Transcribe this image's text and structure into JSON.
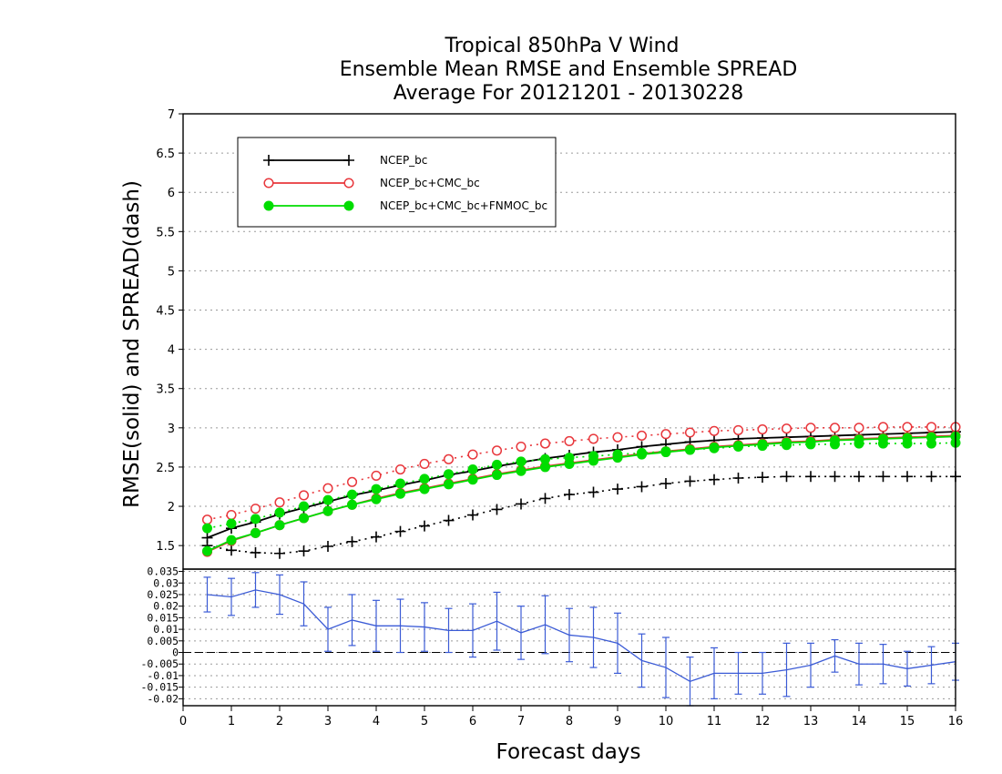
{
  "chart_data": [
    {
      "type": "line",
      "title": [
        "Tropical 850hPa V Wind",
        "Ensemble Mean RMSE and Ensemble SPREAD",
        "Average For 20121201 - 20130228"
      ],
      "ylabel": "RMSE(solid) and SPREAD(dash)",
      "xlim": [
        0,
        16
      ],
      "ylim": [
        1.2,
        7
      ],
      "yticks": [
        "1.5",
        "2",
        "2.5",
        "3",
        "3.5",
        "4",
        "4.5",
        "5",
        "5.5",
        "6",
        "6.5",
        "7"
      ],
      "grid": true,
      "legend_position": "top-left",
      "x": [
        0.5,
        1,
        1.5,
        2,
        2.5,
        3,
        3.5,
        4,
        4.5,
        5,
        5.5,
        6,
        6.5,
        7,
        7.5,
        8,
        8.5,
        9,
        9.5,
        10,
        10.5,
        11,
        11.5,
        12,
        12.5,
        13,
        13.5,
        14,
        14.5,
        15,
        15.5,
        16
      ],
      "series": [
        {
          "name": "NCEP_bc",
          "color": "#000000",
          "marker": "plus",
          "rmse": [
            1.6,
            1.72,
            1.8,
            1.9,
            1.98,
            2.06,
            2.14,
            2.2,
            2.27,
            2.33,
            2.4,
            2.45,
            2.51,
            2.56,
            2.61,
            2.65,
            2.69,
            2.72,
            2.76,
            2.79,
            2.82,
            2.84,
            2.86,
            2.87,
            2.88,
            2.89,
            2.9,
            2.91,
            2.92,
            2.93,
            2.94,
            2.95
          ],
          "spread": [
            1.5,
            1.44,
            1.41,
            1.4,
            1.43,
            1.49,
            1.55,
            1.61,
            1.68,
            1.75,
            1.82,
            1.89,
            1.96,
            2.03,
            2.1,
            2.15,
            2.18,
            2.22,
            2.25,
            2.29,
            2.32,
            2.34,
            2.36,
            2.37,
            2.38,
            2.38,
            2.38,
            2.38,
            2.38,
            2.38,
            2.38,
            2.38
          ]
        },
        {
          "name": "NCEP_bc+CMC_bc",
          "color": "#e8373c",
          "marker": "open-circle",
          "rmse": [
            1.42,
            1.56,
            1.66,
            1.76,
            1.85,
            1.94,
            2.02,
            2.1,
            2.17,
            2.23,
            2.29,
            2.35,
            2.41,
            2.46,
            2.51,
            2.55,
            2.59,
            2.63,
            2.67,
            2.7,
            2.73,
            2.76,
            2.78,
            2.8,
            2.82,
            2.83,
            2.85,
            2.86,
            2.87,
            2.88,
            2.89,
            2.9
          ],
          "spread": [
            1.83,
            1.89,
            1.97,
            2.05,
            2.14,
            2.23,
            2.31,
            2.39,
            2.47,
            2.54,
            2.6,
            2.66,
            2.71,
            2.76,
            2.8,
            2.83,
            2.86,
            2.88,
            2.9,
            2.92,
            2.94,
            2.96,
            2.97,
            2.98,
            2.99,
            3.0,
            3.0,
            3.0,
            3.01,
            3.01,
            3.01,
            3.01
          ]
        },
        {
          "name": "NCEP_bc+CMC_bc+FNMOC_bc",
          "color": "#00dd00",
          "marker": "filled-circle",
          "rmse": [
            1.43,
            1.57,
            1.66,
            1.76,
            1.85,
            1.94,
            2.02,
            2.09,
            2.16,
            2.22,
            2.28,
            2.34,
            2.4,
            2.45,
            2.5,
            2.54,
            2.58,
            2.62,
            2.66,
            2.69,
            2.72,
            2.75,
            2.77,
            2.79,
            2.81,
            2.82,
            2.84,
            2.85,
            2.86,
            2.87,
            2.88,
            2.89
          ],
          "spread": [
            1.72,
            1.78,
            1.84,
            1.92,
            2.0,
            2.08,
            2.15,
            2.22,
            2.29,
            2.35,
            2.41,
            2.47,
            2.53,
            2.57,
            2.6,
            2.62,
            2.64,
            2.66,
            2.68,
            2.7,
            2.72,
            2.74,
            2.76,
            2.77,
            2.78,
            2.79,
            2.79,
            2.8,
            2.8,
            2.8,
            2.8,
            2.81
          ]
        }
      ]
    },
    {
      "type": "line",
      "xlabel": "Forecast days",
      "xlim": [
        0,
        16
      ],
      "xticks": [
        "0",
        "1",
        "2",
        "3",
        "4",
        "5",
        "6",
        "7",
        "8",
        "9",
        "10",
        "11",
        "12",
        "13",
        "14",
        "15",
        "16"
      ],
      "ylim": [
        -0.023,
        0.036
      ],
      "yticks": [
        "-0.02",
        "-0.015",
        "-0.01",
        "-0.005",
        "0",
        "0.005",
        "0.01",
        "0.015",
        "0.02",
        "0.025",
        "0.03",
        "0.035"
      ],
      "grid": true,
      "series": [
        {
          "color": "#3b5bd6",
          "x": [
            0.5,
            1,
            1.5,
            2,
            2.5,
            3,
            3.5,
            4,
            4.5,
            5,
            5.5,
            6,
            6.5,
            7,
            7.5,
            8,
            8.5,
            9,
            9.5,
            10,
            10.5,
            11,
            11.5,
            12,
            12.5,
            13,
            13.5,
            14,
            14.5,
            15,
            15.5,
            16
          ],
          "values": [
            0.025,
            0.024,
            0.027,
            0.025,
            0.021,
            0.01,
            0.014,
            0.0115,
            0.0115,
            0.011,
            0.0095,
            0.0095,
            0.0135,
            0.0085,
            0.012,
            0.0075,
            0.0065,
            0.004,
            -0.0035,
            -0.0065,
            -0.0125,
            -0.009,
            -0.009,
            -0.009,
            -0.0075,
            -0.0055,
            -0.0015,
            -0.005,
            -0.005,
            -0.007,
            -0.0055,
            -0.004
          ],
          "errors": [
            0.0075,
            0.008,
            0.0075,
            0.0085,
            0.0095,
            0.0095,
            0.011,
            0.011,
            0.0115,
            0.0105,
            0.0095,
            0.0115,
            0.0125,
            0.0115,
            0.0125,
            0.0115,
            0.013,
            0.013,
            0.0115,
            0.013,
            0.0105,
            0.011,
            0.009,
            0.009,
            0.0115,
            0.0095,
            0.007,
            0.009,
            0.0085,
            0.0075,
            0.008,
            0.008
          ]
        }
      ]
    }
  ]
}
